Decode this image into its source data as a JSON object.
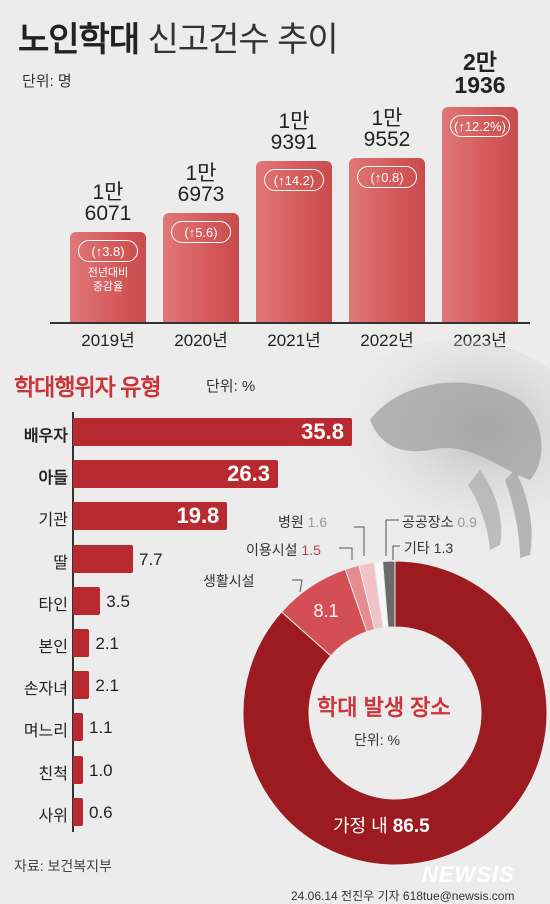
{
  "header": {
    "title_bold": "노인학대",
    "title_light": "신고건수 추이",
    "unit": "단위: 명"
  },
  "chart_data": [
    {
      "type": "bar",
      "categories": [
        "2019년",
        "2020년",
        "2021년",
        "2022년",
        "2023년"
      ],
      "values": [
        16071,
        16973,
        19391,
        19552,
        21936
      ],
      "value_labels": [
        [
          "1만",
          "6071"
        ],
        [
          "1만",
          "6973"
        ],
        [
          "1만",
          "9391"
        ],
        [
          "1만",
          "9552"
        ],
        [
          "2만",
          "1936"
        ]
      ],
      "growth_labels": [
        "(↑3.8)",
        "(↑5.6)",
        "(↑14.2)",
        "(↑0.8)",
        "(↑12.2%)"
      ],
      "growth_values": [
        3.8,
        5.6,
        14.2,
        0.8,
        12.2
      ],
      "growth_note": [
        "전년대비",
        "증감율"
      ],
      "unit": "단위: 명"
    },
    {
      "type": "bar",
      "orientation": "horizontal",
      "title": "학대행위자 유형",
      "unit": "단위: %",
      "categories": [
        "배우자",
        "아들",
        "기관",
        "딸",
        "타인",
        "본인",
        "손자녀",
        "며느리",
        "친척",
        "사위"
      ],
      "values": [
        35.8,
        26.3,
        19.8,
        7.7,
        3.5,
        2.1,
        2.1,
        1.1,
        1.0,
        0.6
      ],
      "labels": [
        "35.8",
        "26.3",
        "19.8",
        "7.7",
        "3.5",
        "2.1",
        "2.1",
        "1.1",
        "1.0",
        "0.6"
      ]
    },
    {
      "type": "pie",
      "title": "학대 발생 장소",
      "unit": "단위: %",
      "slices": [
        {
          "name": "가정 내",
          "value": 86.5,
          "label": "86.5",
          "color": "#9b1b20"
        },
        {
          "name": "생활시설",
          "value": 8.1,
          "label": "8.1",
          "color": "#d34f55"
        },
        {
          "name": "이용시설",
          "value": 1.5,
          "label": "1.5",
          "color": "#e58c90"
        },
        {
          "name": "병원",
          "value": 1.6,
          "label": "1.6",
          "color": "#f0c4c6"
        },
        {
          "name": "공공장소",
          "value": 0.9,
          "label": "0.9",
          "color": "#f7f7f7"
        },
        {
          "name": "기타",
          "value": 1.3,
          "label": "1.3",
          "color": "#6a6a6a"
        }
      ]
    }
  ],
  "footer": {
    "source": "자료: 보건복지부",
    "brand": "NEWSIS",
    "credit": "24.06.14 전진우 기자 618tue@newsis.com"
  },
  "colors": {
    "accent": "#c9353a",
    "bar_top": "#d55a5a",
    "hbar": "#b82a2f"
  }
}
